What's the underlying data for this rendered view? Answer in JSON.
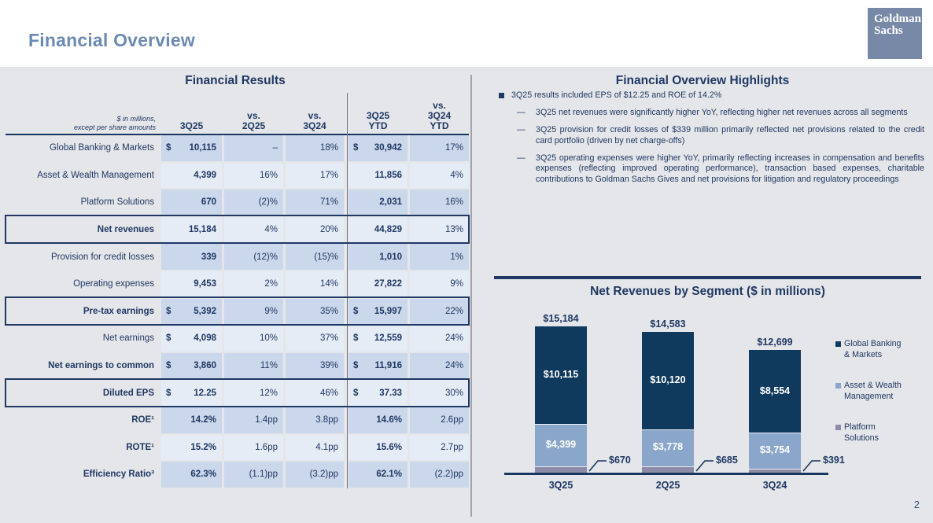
{
  "header": {
    "title": "Financial Overview",
    "logo_line1": "Goldman",
    "logo_line2": "Sachs"
  },
  "table": {
    "title": "Financial Results",
    "caption_lines": [
      "$ in millions,",
      "except per share amounts"
    ],
    "columns": [
      "3Q25",
      "vs.\n2Q25",
      "vs.\n3Q24",
      "3Q25\nYTD",
      "vs.\n3Q24\nYTD"
    ],
    "rows": [
      {
        "label": "Global Banking & Markets",
        "bold_label": false,
        "boxed": false,
        "cells": [
          "$ 10,115",
          "–",
          "18%",
          "$ 30,942",
          "17%"
        ]
      },
      {
        "label": "Asset & Wealth Management",
        "bold_label": false,
        "boxed": false,
        "cells": [
          "4,399",
          "16%",
          "17%",
          "11,856",
          "4%"
        ]
      },
      {
        "label": "Platform Solutions",
        "bold_label": false,
        "boxed": false,
        "cells": [
          "670",
          "(2)%",
          "71%",
          "2,031",
          "16%"
        ]
      },
      {
        "label": "Net revenues",
        "bold_label": true,
        "boxed": true,
        "cells": [
          "15,184",
          "4%",
          "20%",
          "44,829",
          "13%"
        ]
      },
      {
        "label": "Provision for credit losses",
        "bold_label": false,
        "boxed": false,
        "cells": [
          "339",
          "(12)%",
          "(15)%",
          "1,010",
          "1%"
        ]
      },
      {
        "label": "Operating expenses",
        "bold_label": false,
        "boxed": false,
        "cells": [
          "9,453",
          "2%",
          "14%",
          "27,822",
          "9%"
        ]
      },
      {
        "label": "Pre-tax earnings",
        "bold_label": true,
        "boxed": true,
        "cells": [
          "$ 5,392",
          "9%",
          "35%",
          "$ 15,997",
          "22%"
        ]
      },
      {
        "label": "Net earnings",
        "bold_label": false,
        "boxed": false,
        "cells": [
          "$ 4,098",
          "10%",
          "37%",
          "$ 12,559",
          "24%"
        ]
      },
      {
        "label": "Net earnings to common",
        "bold_label": true,
        "boxed": false,
        "cells": [
          "$ 3,860",
          "11%",
          "39%",
          "$ 11,916",
          "24%"
        ]
      },
      {
        "label": "Diluted EPS",
        "bold_label": true,
        "boxed": true,
        "cells": [
          "$ 12.25",
          "12%",
          "46%",
          "$ 37.33",
          "30%"
        ]
      },
      {
        "label": "ROE¹",
        "bold_label": true,
        "boxed": false,
        "cells": [
          "14.2%",
          "1.4pp",
          "3.8pp",
          "14.6%",
          "2.6pp"
        ]
      },
      {
        "label": "ROTE¹",
        "bold_label": true,
        "boxed": false,
        "cells": [
          "15.2%",
          "1.6pp",
          "4.1pp",
          "15.6%",
          "2.7pp"
        ]
      },
      {
        "label": "Efficiency Ratio³",
        "bold_label": true,
        "boxed": false,
        "cells": [
          "62.3%",
          "(1.1)pp",
          "(3.2)pp",
          "62.1%",
          "(2.2)pp"
        ]
      }
    ]
  },
  "highlights": {
    "title": "Financial Overview Highlights",
    "dash_marker": "—",
    "bullet": "3Q25 results included EPS of $12.25 and ROE of 14.2%",
    "sub_bullets": [
      "3Q25 net revenues were significantly higher YoY, reflecting higher net revenues across all segments",
      "3Q25 provision for credit losses of $339 million primarily reflected net provisions related to the credit card portfolio (driven by net charge-offs)",
      "3Q25 operating expenses were higher YoY, primarily reflecting increases in compensation and benefits expenses (reflecting improved operating performance), transaction based expenses, charitable contributions to Goldman Sachs Gives and net provisions for litigation and regulatory proceedings"
    ]
  },
  "chart_data": {
    "type": "bar",
    "subtype": "stacked",
    "title": "Net Revenues by Segment ($ in millions)",
    "categories": [
      "3Q25",
      "2Q25",
      "3Q24"
    ],
    "series": [
      {
        "name": "Global Banking & Markets",
        "legend_label": "Global Banking\n& Markets",
        "color": "#10395e",
        "values": [
          10115,
          10120,
          8554
        ],
        "labels": [
          "$10,115",
          "$10,120",
          "$8,554"
        ],
        "label_style": "inside"
      },
      {
        "name": "Asset & Wealth Management",
        "legend_label": "Asset & Wealth\nManagement",
        "color": "#8ba6cb",
        "values": [
          4399,
          3778,
          3754
        ],
        "labels": [
          "$4,399",
          "$3,778",
          "$3,754"
        ],
        "label_style": "inside"
      },
      {
        "name": "Platform Solutions",
        "legend_label": "Platform\nSolutions",
        "color": "#8d8ca6",
        "values": [
          670,
          685,
          391
        ],
        "labels": [
          "$670",
          "$685",
          "$391"
        ],
        "label_style": "callout"
      }
    ],
    "totals": [
      15184,
      14583,
      12699
    ],
    "total_labels": [
      "$15,184",
      "$14,583",
      "$12,699"
    ],
    "ylim": [
      0,
      15184
    ],
    "legend_position": "right",
    "grid": false
  },
  "footer": {
    "page_number": "2"
  }
}
